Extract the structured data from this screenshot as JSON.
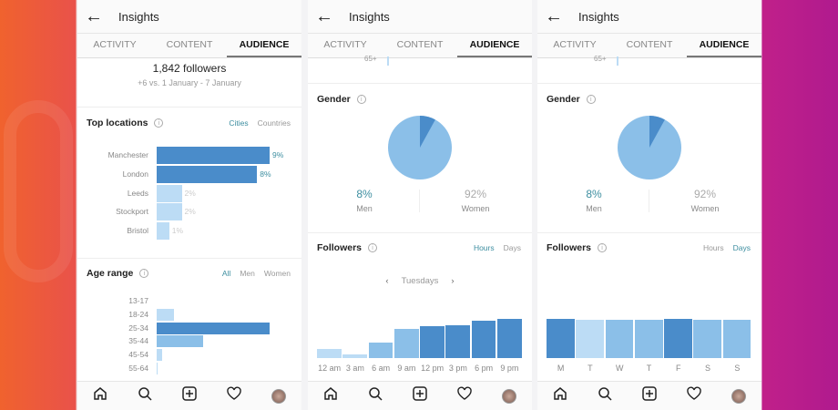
{
  "header": {
    "title": "Insights"
  },
  "tabs": [
    "ACTIVITY",
    "CONTENT",
    "AUDIENCE"
  ],
  "active_tab": "AUDIENCE",
  "colors": {
    "dark": "#4a8cca",
    "mid": "#8bbfe8",
    "light": "#bcdcf5",
    "accent": "#3d8ea0"
  },
  "followers": {
    "count": "1,842 followers",
    "change": "+6 vs. 1 January - 7 January"
  },
  "top_locations": {
    "title": "Top locations",
    "toggles": [
      "Cities",
      "Countries"
    ],
    "active": "Cities",
    "items": [
      {
        "label": "Manchester",
        "value": 9,
        "text": "9%"
      },
      {
        "label": "London",
        "value": 8,
        "text": "8%"
      },
      {
        "label": "Leeds",
        "value": 2,
        "text": "2%"
      },
      {
        "label": "Stockport",
        "value": 2,
        "text": "2%"
      },
      {
        "label": "Bristol",
        "value": 1,
        "text": "1%"
      }
    ]
  },
  "age_range": {
    "title": "Age range",
    "toggles": [
      "All",
      "Men",
      "Women"
    ],
    "active": "All",
    "items": [
      {
        "label": "13-17",
        "value": 0
      },
      {
        "label": "18-24",
        "value": 15
      },
      {
        "label": "25-34",
        "value": 100
      },
      {
        "label": "35-44",
        "value": 41
      },
      {
        "label": "45-54",
        "value": 5
      },
      {
        "label": "55-64",
        "value": 1
      }
    ]
  },
  "age_cut_label": "65+",
  "gender": {
    "title": "Gender",
    "men": {
      "pct": "8%",
      "label": "Men",
      "value": 8
    },
    "women": {
      "pct": "92%",
      "label": "Women",
      "value": 92
    }
  },
  "followers_hours": {
    "title": "Followers",
    "toggles": [
      "Hours",
      "Days"
    ],
    "active": "Hours",
    "day": "Tuesdays",
    "labels": [
      "12 am",
      "3 am",
      "6 am",
      "9 am",
      "12 pm",
      "3 pm",
      "6 pm",
      "9 pm"
    ],
    "values": [
      23,
      9,
      40,
      74,
      81,
      84,
      95,
      100
    ],
    "shades": [
      "light",
      "light",
      "mid",
      "mid",
      "dark",
      "dark",
      "dark",
      "dark"
    ]
  },
  "followers_days": {
    "title": "Followers",
    "toggles": [
      "Hours",
      "Days"
    ],
    "active": "Days",
    "labels": [
      "M",
      "T",
      "W",
      "T",
      "F",
      "S",
      "S"
    ],
    "values": [
      100,
      97,
      98,
      98,
      100,
      97,
      97
    ],
    "shades": [
      "dark",
      "light",
      "mid",
      "mid",
      "dark",
      "mid",
      "mid"
    ]
  },
  "nav": [
    "home-icon",
    "search-icon",
    "add-icon",
    "heart-icon",
    "avatar"
  ]
}
